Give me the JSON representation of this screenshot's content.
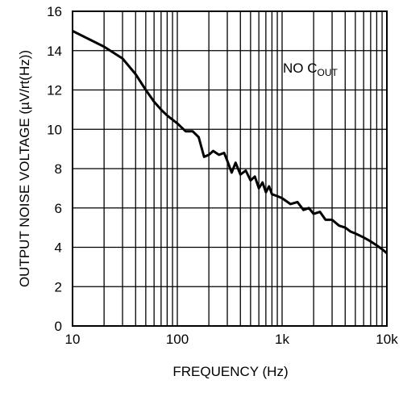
{
  "chart_data": {
    "type": "line",
    "title": "",
    "xlabel": "FREQUENCY (Hz)",
    "ylabel": "OUTPUT NOISE VOLTAGE (µV/rt(Hz))",
    "x_scale": "log",
    "xlim": [
      10,
      10000
    ],
    "ylim": [
      0,
      16
    ],
    "x_tick_values": [
      10,
      100,
      1000,
      10000
    ],
    "x_tick_labels": [
      "10",
      "100",
      "1k",
      "10k"
    ],
    "y_tick_values": [
      0,
      2,
      4,
      6,
      8,
      10,
      12,
      14,
      16
    ],
    "y_tick_labels": [
      "0",
      "2",
      "4",
      "6",
      "8",
      "10",
      "12",
      "14",
      "16"
    ],
    "grid": true,
    "annotation": {
      "main": "NO C",
      "subscript": "OUT"
    },
    "series": [
      {
        "x": [
          10,
          20,
          30,
          40,
          50,
          60,
          70,
          80,
          100,
          120,
          140,
          160,
          180,
          200,
          220,
          250,
          280,
          300,
          330,
          360,
          400,
          450,
          500,
          550,
          600,
          650,
          700,
          750,
          800,
          900,
          1000,
          1200,
          1400,
          1600,
          1800,
          2000,
          2300,
          2600,
          3000,
          3500,
          4000,
          4500,
          5000,
          6000,
          7000,
          8000,
          9000,
          10000
        ],
        "y": [
          15.0,
          14.2,
          13.6,
          12.8,
          12.0,
          11.4,
          11.0,
          10.7,
          10.3,
          9.9,
          9.9,
          9.6,
          8.6,
          8.7,
          8.9,
          8.7,
          8.8,
          8.4,
          7.8,
          8.3,
          7.7,
          7.9,
          7.4,
          7.6,
          7.0,
          7.3,
          6.8,
          7.1,
          6.7,
          6.6,
          6.5,
          6.2,
          6.3,
          5.9,
          6.0,
          5.7,
          5.8,
          5.4,
          5.4,
          5.1,
          5.0,
          4.8,
          4.7,
          4.5,
          4.3,
          4.1,
          3.9,
          3.7
        ]
      }
    ]
  }
}
